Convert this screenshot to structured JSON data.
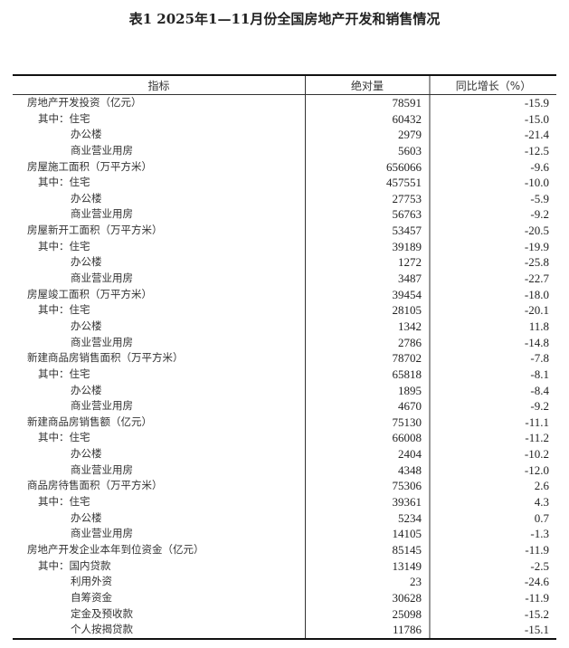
{
  "title": "表1 2025年1—11月份全国房地产开发和销售情况",
  "headers": [
    "指标",
    "绝对量",
    "同比增长（%）"
  ],
  "rows": [
    {
      "label": "房地产开发投资（亿元）",
      "level": 0,
      "value": "78591",
      "growth": "-15.9"
    },
    {
      "label": "其中：住宅",
      "level": 1,
      "value": "60432",
      "growth": "-15.0"
    },
    {
      "label": "办公楼",
      "level": 2,
      "value": "2979",
      "growth": "-21.4"
    },
    {
      "label": "商业营业用房",
      "level": 2,
      "value": "5603",
      "growth": "-12.5"
    },
    {
      "label": "房屋施工面积（万平方米）",
      "level": 0,
      "value": "656066",
      "growth": "-9.6"
    },
    {
      "label": "其中：住宅",
      "level": 1,
      "value": "457551",
      "growth": "-10.0"
    },
    {
      "label": "办公楼",
      "level": 2,
      "value": "27753",
      "growth": "-5.9"
    },
    {
      "label": "商业营业用房",
      "level": 2,
      "value": "56763",
      "growth": "-9.2"
    },
    {
      "label": "房屋新开工面积（万平方米）",
      "level": 0,
      "value": "53457",
      "growth": "-20.5"
    },
    {
      "label": "其中：住宅",
      "level": 1,
      "value": "39189",
      "growth": "-19.9"
    },
    {
      "label": "办公楼",
      "level": 2,
      "value": "1272",
      "growth": "-25.8"
    },
    {
      "label": "商业营业用房",
      "level": 2,
      "value": "3487",
      "growth": "-22.7"
    },
    {
      "label": "房屋竣工面积（万平方米）",
      "level": 0,
      "value": "39454",
      "growth": "-18.0"
    },
    {
      "label": "其中：住宅",
      "level": 1,
      "value": "28105",
      "growth": "-20.1"
    },
    {
      "label": "办公楼",
      "level": 2,
      "value": "1342",
      "growth": "11.8"
    },
    {
      "label": "商业营业用房",
      "level": 2,
      "value": "2786",
      "growth": "-14.8"
    },
    {
      "label": "新建商品房销售面积（万平方米）",
      "level": 0,
      "value": "78702",
      "growth": "-7.8"
    },
    {
      "label": "其中：住宅",
      "level": 1,
      "value": "65818",
      "growth": "-8.1"
    },
    {
      "label": "办公楼",
      "level": 2,
      "value": "1895",
      "growth": "-8.4"
    },
    {
      "label": "商业营业用房",
      "level": 2,
      "value": "4670",
      "growth": "-9.2"
    },
    {
      "label": "新建商品房销售额（亿元）",
      "level": 0,
      "value": "75130",
      "growth": "-11.1"
    },
    {
      "label": "其中：住宅",
      "level": 1,
      "value": "66008",
      "growth": "-11.2"
    },
    {
      "label": "办公楼",
      "level": 2,
      "value": "2404",
      "growth": "-10.2"
    },
    {
      "label": "商业营业用房",
      "level": 2,
      "value": "4348",
      "growth": "-12.0"
    },
    {
      "label": "商品房待售面积（万平方米）",
      "level": 0,
      "value": "75306",
      "growth": "2.6"
    },
    {
      "label": "其中：住宅",
      "level": 1,
      "value": "39361",
      "growth": "4.3"
    },
    {
      "label": "办公楼",
      "level": 2,
      "value": "5234",
      "growth": "0.7"
    },
    {
      "label": "商业营业用房",
      "level": 2,
      "value": "14105",
      "growth": "-1.3"
    },
    {
      "label": "房地产开发企业本年到位资金（亿元）",
      "level": 0,
      "value": "85145",
      "growth": "-11.9"
    },
    {
      "label": "其中：国内贷款",
      "level": 1,
      "value": "13149",
      "growth": "-2.5"
    },
    {
      "label": "利用外资",
      "level": 2,
      "value": "23",
      "growth": "-24.6"
    },
    {
      "label": "自筹资金",
      "level": 2,
      "value": "30628",
      "growth": "-11.9"
    },
    {
      "label": "定金及预收款",
      "level": 2,
      "value": "25098",
      "growth": "-15.2"
    },
    {
      "label": "个人按揭贷款",
      "level": 2,
      "value": "11786",
      "growth": "-15.1"
    }
  ]
}
